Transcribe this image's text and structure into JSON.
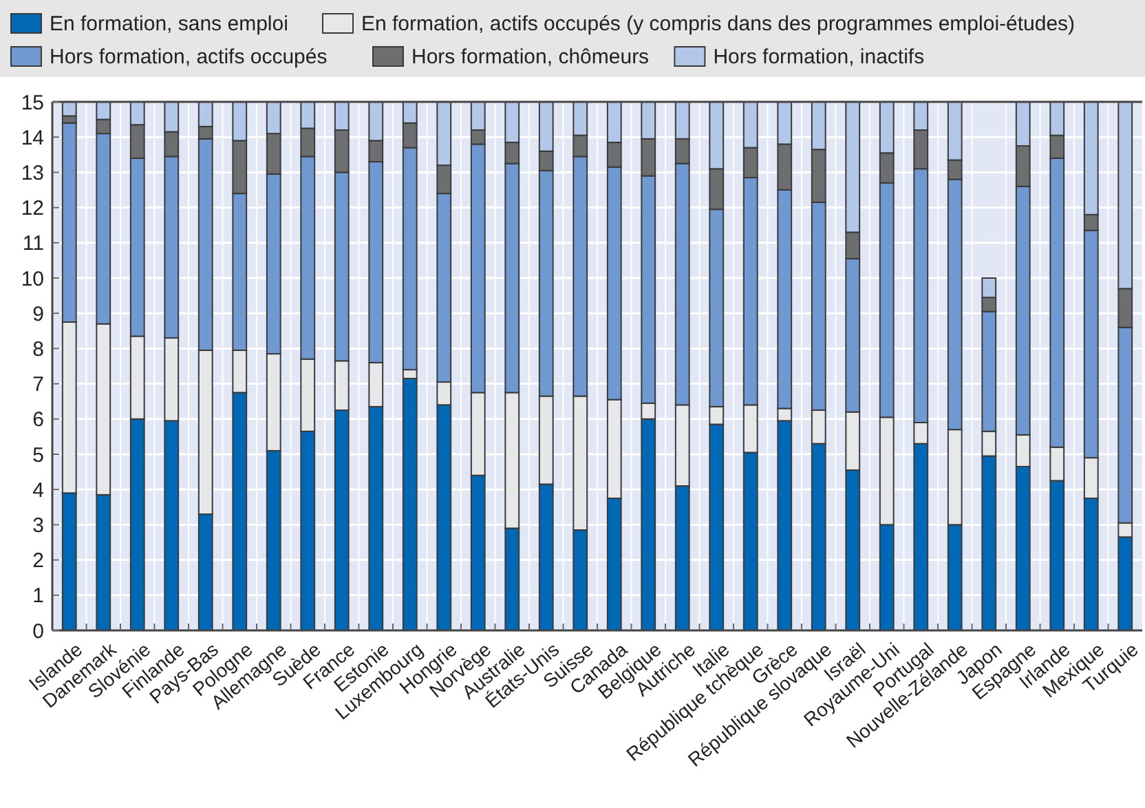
{
  "chart_data": {
    "type": "bar",
    "stacked": true,
    "categories": [
      "Islande",
      "Danemark",
      "Slovénie",
      "Finlande",
      "Pays-Bas",
      "Pologne",
      "Allemagne",
      "Suède",
      "France",
      "Estonie",
      "Luxembourg",
      "Hongrie",
      "Norvège",
      "Australie",
      "États-Unis",
      "Suisse",
      "Canada",
      "Belgique",
      "Autriche",
      "Italie",
      "République tchèque",
      "Grèce",
      "République slovaque",
      "Israël",
      "Royaume-Uni",
      "Portugal",
      "Nouvelle-Zélande",
      "Japon",
      "Espagne",
      "Irlande",
      "Mexique",
      "Turquie"
    ],
    "series": [
      {
        "name": "En formation, sans emploi",
        "color": "#0068b4",
        "values": [
          3.9,
          3.85,
          6.0,
          5.95,
          3.3,
          6.75,
          5.1,
          5.65,
          6.25,
          6.35,
          7.15,
          6.4,
          4.4,
          2.9,
          4.15,
          2.85,
          3.75,
          6.0,
          4.1,
          5.85,
          5.05,
          5.95,
          5.3,
          4.55,
          3.0,
          5.3,
          3.0,
          4.95,
          4.65,
          4.25,
          3.75,
          2.65
        ]
      },
      {
        "name": "En formation, actifs occupés (y compris dans des programmes emploi-études)",
        "color": "#e6e7e9",
        "values": [
          4.85,
          4.85,
          2.35,
          2.35,
          4.65,
          1.2,
          2.75,
          2.05,
          1.4,
          1.25,
          0.25,
          0.65,
          2.35,
          3.85,
          2.5,
          3.8,
          2.8,
          0.45,
          2.3,
          0.5,
          1.35,
          0.35,
          0.95,
          1.65,
          3.05,
          0.6,
          2.7,
          0.7,
          0.9,
          0.95,
          1.15,
          0.4
        ]
      },
      {
        "name": "Hors formation, actifs occupés",
        "color": "#7099d2",
        "values": [
          5.65,
          5.4,
          5.05,
          5.15,
          6.0,
          4.45,
          5.1,
          5.75,
          5.35,
          5.7,
          6.3,
          5.35,
          7.05,
          6.5,
          6.4,
          6.8,
          6.6,
          6.45,
          6.85,
          5.6,
          6.45,
          6.2,
          5.9,
          4.35,
          6.65,
          7.2,
          7.1,
          3.4,
          7.05,
          8.2,
          6.45,
          5.55
        ]
      },
      {
        "name": "Hors formation, chômeurs",
        "color": "#6d6e70",
        "values": [
          0.2,
          0.4,
          0.95,
          0.7,
          0.35,
          1.5,
          1.15,
          0.8,
          1.2,
          0.6,
          0.7,
          0.8,
          0.4,
          0.6,
          0.55,
          0.6,
          0.7,
          1.05,
          0.7,
          1.15,
          0.85,
          1.3,
          1.5,
          0.75,
          0.85,
          1.1,
          0.55,
          0.4,
          1.15,
          0.65,
          0.45,
          1.1
        ]
      },
      {
        "name": "Hors formation, inactifs",
        "color": "#b3c7e8",
        "values": [
          0.4,
          0.5,
          0.65,
          0.85,
          0.7,
          1.1,
          0.9,
          0.75,
          0.8,
          1.1,
          0.6,
          1.8,
          0.8,
          1.15,
          1.4,
          0.95,
          1.15,
          1.05,
          1.05,
          1.9,
          1.3,
          1.2,
          1.35,
          3.7,
          1.45,
          0.8,
          1.65,
          0.55,
          1.25,
          0.95,
          3.2,
          5.3
        ]
      }
    ],
    "ylim": [
      0,
      15
    ],
    "yticks": [
      0,
      1,
      2,
      3,
      4,
      5,
      6,
      7,
      8,
      9,
      10,
      11,
      12,
      13,
      14,
      15
    ],
    "grid": true,
    "legend": "top"
  }
}
